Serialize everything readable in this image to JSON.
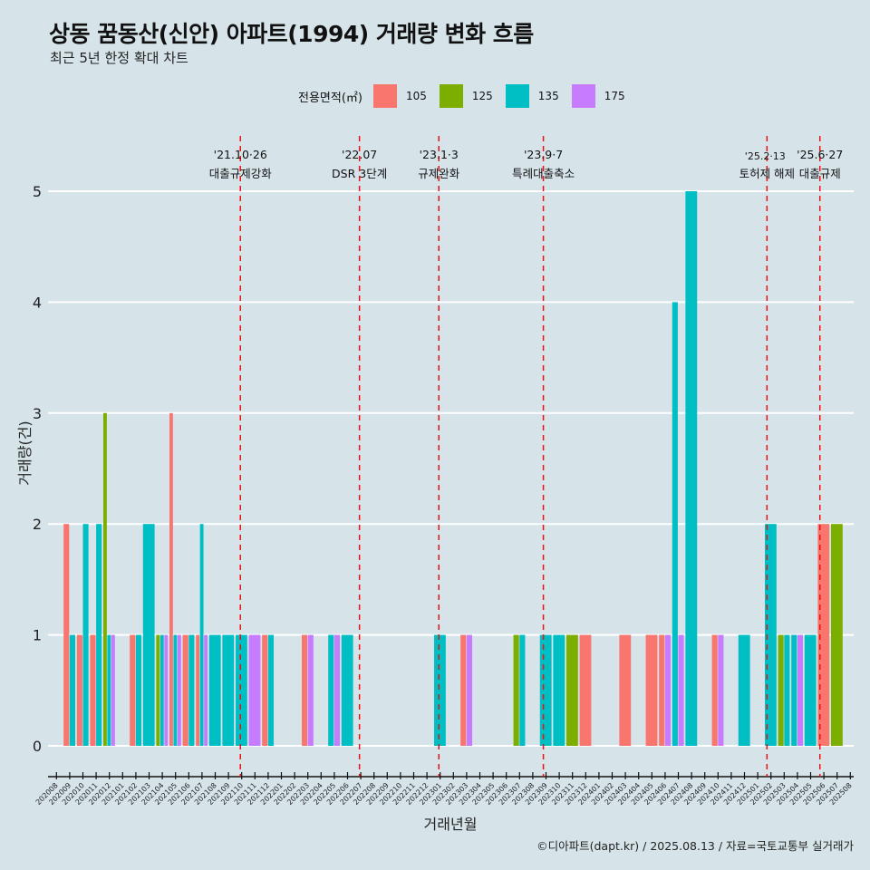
{
  "title": "상동 꿈동산(신안) 아파트(1994) 거래량 변화 흐름",
  "subtitle": "최근 5년 한정 확대 차트",
  "caption": "©디아파트(dapt.kr) / 2025.08.13 / 자료=국토교통부 실거래가",
  "chart_data": {
    "type": "bar",
    "xlabel": "거래년월",
    "ylabel": "거래량(건)",
    "ylim": [
      -0.2,
      5.3
    ],
    "yticks": [
      0,
      1,
      2,
      3,
      4,
      5
    ],
    "legend": {
      "title": "전용면적(㎡)",
      "placement": "top"
    },
    "series_colors": {
      "105": "#f8766d",
      "125": "#7cae00",
      "135": "#00bfc4",
      "175": "#c77cff"
    },
    "series_names": [
      "105",
      "125",
      "135",
      "175"
    ],
    "categories": [
      "202008",
      "202009",
      "202010",
      "202011",
      "202012",
      "202101",
      "202102",
      "202103",
      "202104",
      "202105",
      "202106",
      "202107",
      "202108",
      "202109",
      "202110",
      "202111",
      "202112",
      "202201",
      "202202",
      "202203",
      "202204",
      "202205",
      "202206",
      "202207",
      "202208",
      "202209",
      "202210",
      "202211",
      "202212",
      "202301",
      "202302",
      "202303",
      "202304",
      "202305",
      "202306",
      "202307",
      "202308",
      "202309",
      "202310",
      "202311",
      "202312",
      "202401",
      "202402",
      "202403",
      "202404",
      "202405",
      "202406",
      "202407",
      "202408",
      "202409",
      "202410",
      "202411",
      "202412",
      "202501",
      "202502",
      "202503",
      "202504",
      "202505",
      "202506",
      "202507",
      "202508"
    ],
    "data": {
      "202009": {
        "105": 2,
        "135": 1
      },
      "202010": {
        "105": 1,
        "135": 2
      },
      "202011": {
        "105": 1,
        "135": 2
      },
      "202012": {
        "125": 3,
        "135": 1,
        "175": 1
      },
      "202102": {
        "105": 1,
        "135": 1
      },
      "202103": {
        "135": 2
      },
      "202104": {
        "125": 1,
        "135": 1,
        "175": 1
      },
      "202105": {
        "105": 3,
        "135": 1,
        "175": 1
      },
      "202106": {
        "105": 1,
        "135": 1
      },
      "202107": {
        "105": 1,
        "135": 2,
        "175": 1
      },
      "202108": {
        "135": 1
      },
      "202109": {
        "135": 1
      },
      "202110": {
        "135": 1
      },
      "202111": {
        "175": 1
      },
      "202112": {
        "105": 1,
        "135": 1
      },
      "202203": {
        "105": 1,
        "175": 1
      },
      "202205": {
        "135": 1,
        "175": 1
      },
      "202206": {
        "135": 1
      },
      "202301": {
        "135": 1
      },
      "202303": {
        "105": 1,
        "175": 1
      },
      "202307": {
        "125": 1,
        "135": 1
      },
      "202309": {
        "135": 1
      },
      "202310": {
        "135": 1
      },
      "202311": {
        "125": 1
      },
      "202312": {
        "105": 1
      },
      "202403": {
        "105": 1
      },
      "202405": {
        "105": 1
      },
      "202406": {
        "105": 1,
        "175": 1
      },
      "202407": {
        "135": 4,
        "175": 1
      },
      "202408": {
        "135": 5
      },
      "202410": {
        "105": 1,
        "175": 1
      },
      "202412": {
        "135": 1
      },
      "202502": {
        "135": 2
      },
      "202503": {
        "125": 1,
        "135": 1
      },
      "202504": {
        "135": 1,
        "175": 1
      },
      "202505": {
        "135": 1
      },
      "202506": {
        "105": 2
      },
      "202507": {
        "125": 2
      }
    },
    "events": [
      {
        "date": "'21.10·26",
        "label": "대출규제강화",
        "x_month_index": 13.9
      },
      {
        "date": "'22.07",
        "label": "DSR 3단계",
        "x_month_index": 22.9
      },
      {
        "date": "'23.1·3",
        "label": "규제완화",
        "x_month_index": 28.9
      },
      {
        "date": "'23.9·7",
        "label": "특례대출축소",
        "x_month_index": 36.8
      },
      {
        "date": "'25.2·13",
        "label": "토허제 해제",
        "x_month_index": 53.7
      },
      {
        "date": "'25.6·27",
        "label": "대출규제",
        "x_month_index": 57.7
      }
    ],
    "event_color": "#ee1111"
  }
}
